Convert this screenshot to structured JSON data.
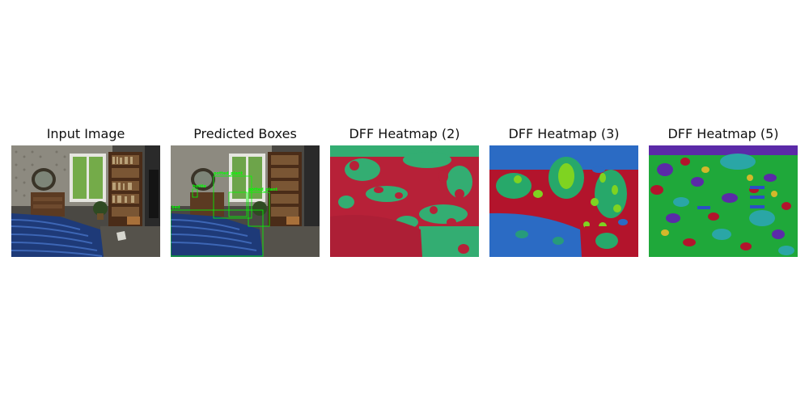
{
  "panels": [
    {
      "title": "Input Image",
      "kind": "input"
    },
    {
      "title": "Predicted Boxes",
      "kind": "boxes"
    },
    {
      "title": "DFF Heatmap (2)",
      "kind": "heatmap2"
    },
    {
      "title": "DFF Heatmap (3)",
      "kind": "heatmap3"
    },
    {
      "title": "DFF Heatmap (5)",
      "kind": "heatmap5"
    }
  ],
  "detections": [
    "potted_plant",
    "bottle",
    "potted_plant",
    "bed"
  ],
  "colors": {
    "box": "#00ff00",
    "heat_red": "#b3142c",
    "heat_green": "#27a86a",
    "heat_blue": "#2b6bc4",
    "heat_lime": "#7fd321",
    "heat_purple": "#5b2aa8",
    "heat_cyan": "#2aa6a6"
  }
}
